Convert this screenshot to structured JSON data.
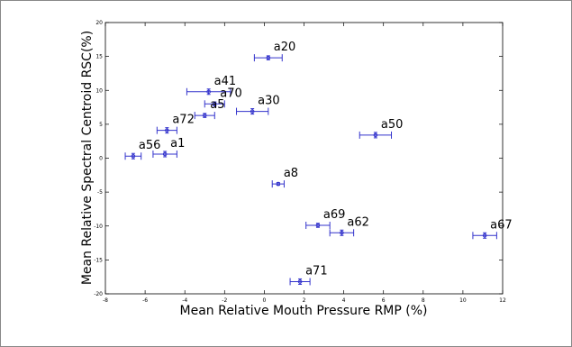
{
  "chart_data": {
    "type": "scatter",
    "title": "",
    "xlabel": "Mean Relative Mouth Pressure RMP (%)",
    "ylabel": "Mean Relative Spectral Centroid RSC(%)",
    "xlim": [
      -8,
      12
    ],
    "ylim": [
      -20,
      20
    ],
    "xticks": [
      "-8",
      "-6",
      "-4",
      "-2",
      "0",
      "2",
      "4",
      "6",
      "8",
      "10",
      "12"
    ],
    "yticks": [
      "-20",
      "-15",
      "-10",
      "-5",
      "0",
      "5",
      "10",
      "15",
      "20"
    ],
    "grid": false,
    "marker_color": "#3333cc",
    "points": [
      {
        "label": "a20",
        "x": 0.2,
        "y": 14.8,
        "xerr": 0.7,
        "yerr": 0.3
      },
      {
        "label": "a41",
        "x": -2.8,
        "y": 9.8,
        "xerr": 1.1,
        "yerr": 0.4
      },
      {
        "label": "a70",
        "x": -2.5,
        "y": 8.0,
        "xerr": 0.5,
        "yerr": 0.3
      },
      {
        "label": "a5",
        "x": -3.0,
        "y": 6.3,
        "xerr": 0.5,
        "yerr": 0.3
      },
      {
        "label": "a30",
        "x": -0.6,
        "y": 6.9,
        "xerr": 0.8,
        "yerr": 0.4
      },
      {
        "label": "a72",
        "x": -4.9,
        "y": 4.1,
        "xerr": 0.5,
        "yerr": 0.4
      },
      {
        "label": "a56",
        "x": -6.6,
        "y": 0.3,
        "xerr": 0.4,
        "yerr": 0.4
      },
      {
        "label": "a1",
        "x": -5.0,
        "y": 0.6,
        "xerr": 0.6,
        "yerr": 0.4
      },
      {
        "label": "a50",
        "x": 5.6,
        "y": 3.4,
        "xerr": 0.8,
        "yerr": 0.4
      },
      {
        "label": "a8",
        "x": 0.7,
        "y": -3.8,
        "xerr": 0.3,
        "yerr": 0.2
      },
      {
        "label": "a69",
        "x": 2.7,
        "y": -9.9,
        "xerr": 0.6,
        "yerr": 0.3
      },
      {
        "label": "a62",
        "x": 3.9,
        "y": -11.0,
        "xerr": 0.6,
        "yerr": 0.4
      },
      {
        "label": "a67",
        "x": 11.1,
        "y": -11.4,
        "xerr": 0.6,
        "yerr": 0.4
      },
      {
        "label": "a71",
        "x": 1.8,
        "y": -18.2,
        "xerr": 0.5,
        "yerr": 0.4
      }
    ]
  }
}
